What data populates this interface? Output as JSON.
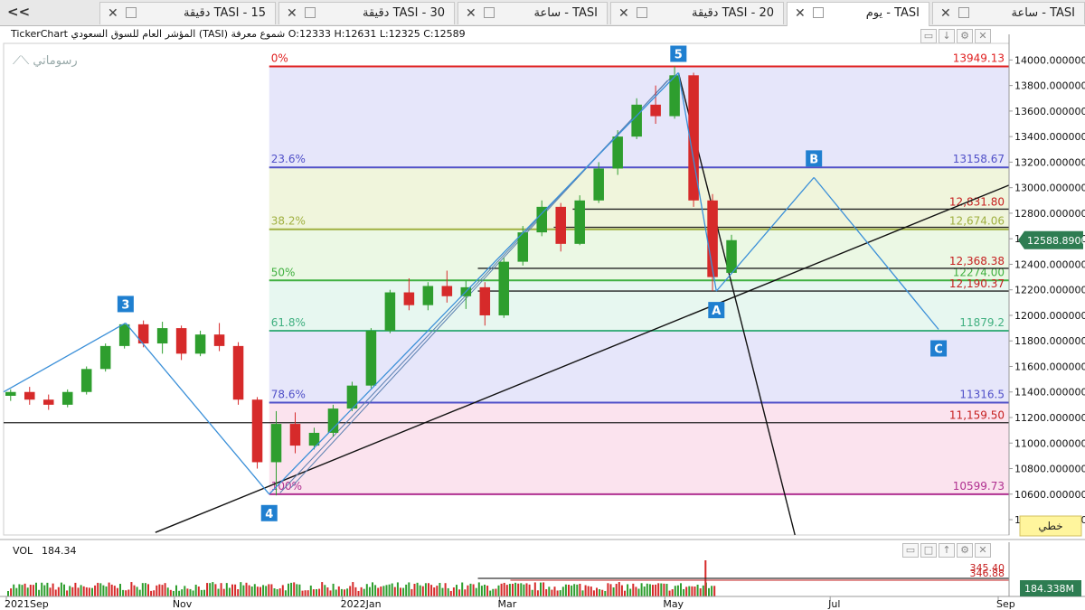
{
  "tabs": [
    {
      "id": "t1",
      "title": "TASI - 15 دقيقة"
    },
    {
      "id": "t2",
      "title": "TASI - 30 دقيقة"
    },
    {
      "id": "t3",
      "title": "TASI - ساعة"
    },
    {
      "id": "t4",
      "title": "TASI - 20 دقيقة"
    },
    {
      "id": "t5",
      "title": "TASI - يوم",
      "active": true
    },
    {
      "id": "t6",
      "title": "TASI - ساعة"
    }
  ],
  "nav_symbol": "<<",
  "header": {
    "ohlc": "TickerChart المؤشر العام للسوق السعودي (TASI) شموع معرفة O:12333 H:12631 L:12325 C:12589",
    "watermark": "رسوماتي"
  },
  "chart_data": {
    "type": "candlestick",
    "symbol": "TASI",
    "y_axis": {
      "min": 10280,
      "max": 14130,
      "side": "right",
      "ticks": [
        10400,
        10600,
        10800,
        11000,
        11200,
        11400,
        11600,
        11800,
        12000,
        12200,
        12400,
        12600,
        12800,
        13000,
        13200,
        13400,
        13600,
        13800,
        14000
      ]
    },
    "x_axis": {
      "range": [
        "2021-08-30",
        "2022-09-05"
      ],
      "ticks": [
        {
          "date": "2021-08-31",
          "label": "2021Sep"
        },
        {
          "date": "2021-11-01",
          "label": "Nov"
        },
        {
          "date": "2022-01-02",
          "label": "2022Jan"
        },
        {
          "date": "2022-03-01",
          "label": "Mar"
        },
        {
          "date": "2022-05-01",
          "label": "May"
        },
        {
          "date": "2022-07-01",
          "label": "Jul"
        },
        {
          "date": "2022-09-01",
          "label": "Sep"
        }
      ]
    },
    "last_price": {
      "value": 12588.89,
      "label": "12588.8900"
    },
    "candles": [
      {
        "d": "2021-08-30",
        "o": 11370,
        "h": 11420,
        "l": 11330,
        "c": 11400
      },
      {
        "d": "2021-09-06",
        "o": 11400,
        "h": 11440,
        "l": 11300,
        "c": 11340
      },
      {
        "d": "2021-09-13",
        "o": 11340,
        "h": 11380,
        "l": 11260,
        "c": 11300
      },
      {
        "d": "2021-09-20",
        "o": 11300,
        "h": 11420,
        "l": 11280,
        "c": 11400
      },
      {
        "d": "2021-09-27",
        "o": 11400,
        "h": 11600,
        "l": 11380,
        "c": 11580
      },
      {
        "d": "2021-10-04",
        "o": 11580,
        "h": 11780,
        "l": 11560,
        "c": 11760
      },
      {
        "d": "2021-10-11",
        "o": 11760,
        "h": 11940,
        "l": 11740,
        "c": 11930
      },
      {
        "d": "2021-10-18",
        "o": 11930,
        "h": 11960,
        "l": 11750,
        "c": 11780
      },
      {
        "d": "2021-10-25",
        "o": 11780,
        "h": 11950,
        "l": 11700,
        "c": 11900
      },
      {
        "d": "2021-11-01",
        "o": 11900,
        "h": 11920,
        "l": 11650,
        "c": 11700
      },
      {
        "d": "2021-11-08",
        "o": 11700,
        "h": 11880,
        "l": 11680,
        "c": 11850
      },
      {
        "d": "2021-11-15",
        "o": 11850,
        "h": 11940,
        "l": 11720,
        "c": 11760
      },
      {
        "d": "2021-11-22",
        "o": 11760,
        "h": 11790,
        "l": 11300,
        "c": 11340
      },
      {
        "d": "2021-11-29",
        "o": 11340,
        "h": 11360,
        "l": 10800,
        "c": 10850
      },
      {
        "d": "2021-12-06",
        "o": 10850,
        "h": 11250,
        "l": 10590,
        "c": 11150
      },
      {
        "d": "2021-12-13",
        "o": 11150,
        "h": 11240,
        "l": 10920,
        "c": 10980
      },
      {
        "d": "2021-12-20",
        "o": 10980,
        "h": 11120,
        "l": 10950,
        "c": 11080
      },
      {
        "d": "2021-12-27",
        "o": 11080,
        "h": 11300,
        "l": 11050,
        "c": 11270
      },
      {
        "d": "2022-01-03",
        "o": 11270,
        "h": 11480,
        "l": 11250,
        "c": 11450
      },
      {
        "d": "2022-01-10",
        "o": 11450,
        "h": 11900,
        "l": 11430,
        "c": 11880
      },
      {
        "d": "2022-01-17",
        "o": 11880,
        "h": 12200,
        "l": 11860,
        "c": 12180
      },
      {
        "d": "2022-01-24",
        "o": 12180,
        "h": 12290,
        "l": 12040,
        "c": 12080
      },
      {
        "d": "2022-01-31",
        "o": 12080,
        "h": 12260,
        "l": 12040,
        "c": 12230
      },
      {
        "d": "2022-02-07",
        "o": 12230,
        "h": 12350,
        "l": 12100,
        "c": 12150
      },
      {
        "d": "2022-02-14",
        "o": 12150,
        "h": 12270,
        "l": 12050,
        "c": 12220
      },
      {
        "d": "2022-02-21",
        "o": 12220,
        "h": 12260,
        "l": 11920,
        "c": 12000
      },
      {
        "d": "2022-02-28",
        "o": 12000,
        "h": 12450,
        "l": 11980,
        "c": 12420
      },
      {
        "d": "2022-03-07",
        "o": 12420,
        "h": 12700,
        "l": 12390,
        "c": 12650
      },
      {
        "d": "2022-03-14",
        "o": 12650,
        "h": 12900,
        "l": 12620,
        "c": 12850
      },
      {
        "d": "2022-03-21",
        "o": 12850,
        "h": 12880,
        "l": 12500,
        "c": 12560
      },
      {
        "d": "2022-03-28",
        "o": 12560,
        "h": 12940,
        "l": 12550,
        "c": 12900
      },
      {
        "d": "2022-04-04",
        "o": 12900,
        "h": 13200,
        "l": 12880,
        "c": 13150
      },
      {
        "d": "2022-04-11",
        "o": 13150,
        "h": 13450,
        "l": 13100,
        "c": 13400
      },
      {
        "d": "2022-04-18",
        "o": 13400,
        "h": 13700,
        "l": 13380,
        "c": 13650
      },
      {
        "d": "2022-04-25",
        "o": 13650,
        "h": 13800,
        "l": 13500,
        "c": 13560
      },
      {
        "d": "2022-05-02",
        "o": 13560,
        "h": 13949,
        "l": 13540,
        "c": 13880
      },
      {
        "d": "2022-05-09",
        "o": 13880,
        "h": 13900,
        "l": 12850,
        "c": 12900
      },
      {
        "d": "2022-05-16",
        "o": 12900,
        "h": 12950,
        "l": 12190,
        "c": 12300
      },
      {
        "d": "2022-05-23",
        "o": 12333,
        "h": 12631,
        "l": 12325,
        "c": 12589
      }
    ],
    "fib_levels": [
      {
        "pct": "0%",
        "value": 13949.13,
        "label": "13949.13",
        "color": "#e02020",
        "band": "#e6e6fa"
      },
      {
        "pct": "23.6%",
        "value": 13158.67,
        "label": "13158.67",
        "color": "#5050c8",
        "band": "#f0f5dc"
      },
      {
        "pct": "38.2%",
        "value": 12674.06,
        "label": "12,674.06",
        "color": "#a0b040",
        "band": "#ebf8e4"
      },
      {
        "pct": "50%",
        "value": 12274.0,
        "label": "12274.00",
        "color": "#40b040",
        "band": "#e7f7f0"
      },
      {
        "pct": "61.8%",
        "value": 11879.2,
        "label": "11879.2",
        "color": "#40b080",
        "band": "#e6e6fa"
      },
      {
        "pct": "78.6%",
        "value": 11316.5,
        "label": "11316.5",
        "color": "#5050c8",
        "band": "#fbe3ee"
      },
      {
        "pct": "100%",
        "value": 10599.73,
        "label": "10599.73",
        "color": "#b03090",
        "band": null
      }
    ],
    "fib_start_date": "2021-12-06",
    "horizontal_lines": [
      {
        "value": 12831.8,
        "label": "12,831.80",
        "start": "2022-03-28"
      },
      {
        "value": 12690.0,
        "label": "",
        "start": "2022-03-21"
      },
      {
        "value": 12368.38,
        "label": "12,368.38",
        "start": "2022-02-21"
      },
      {
        "value": 12190.37,
        "label": "12,190.37",
        "start": "2022-02-21"
      },
      {
        "value": 11159.5,
        "label": "11,159.50",
        "start": "2021-08-30"
      }
    ],
    "wave_points": [
      {
        "label": "3",
        "date": "2021-10-14",
        "value": 11940
      },
      {
        "label": "4",
        "date": "2021-12-06",
        "value": 10600
      },
      {
        "label": "5",
        "date": "2022-05-06",
        "value": 13900
      },
      {
        "label": "A",
        "date": "2022-05-20",
        "value": 12190
      },
      {
        "label": "B",
        "date": "2022-06-25",
        "value": 13080
      },
      {
        "label": "C",
        "date": "2022-08-10",
        "value": 11890
      }
    ],
    "wave_line_start": {
      "date": "2021-08-30",
      "value": 11400
    },
    "trendlines": [
      {
        "from": {
          "date": "2021-10-25",
          "value": 10300
        },
        "to": {
          "date": "2022-09-05",
          "value": 13020
        }
      },
      {
        "from": {
          "date": "2022-05-06",
          "value": 13900
        },
        "to": {
          "date": "2022-06-18",
          "value": 10280
        }
      }
    ],
    "channel_lines": [
      {
        "from": {
          "date": "2021-12-10",
          "value": 10610
        },
        "to": {
          "date": "2022-05-04",
          "value": 13880
        }
      },
      {
        "from": {
          "date": "2021-12-14",
          "value": 10650
        },
        "to": {
          "date": "2022-05-02",
          "value": 13840
        }
      }
    ],
    "volume": {
      "label": "VOL",
      "value": "184.34",
      "last_label": "184.338M",
      "ref_labels": [
        "345.40",
        "346.88"
      ],
      "spike_date": "2022-05-16"
    }
  },
  "linear_button": "خطي",
  "colors": {
    "up": "#2e9e2e",
    "down": "#d62a2a",
    "price_tag": "#2e7d52",
    "wave": "#3a8fd8",
    "badge": "#1f7fd0"
  }
}
